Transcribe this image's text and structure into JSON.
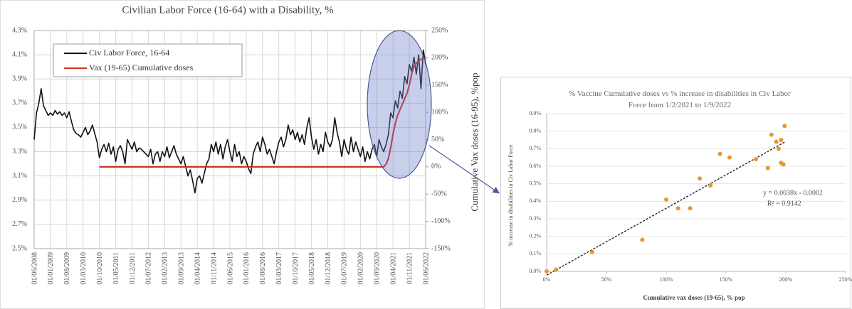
{
  "chart_data": [
    {
      "type": "line",
      "title": "Civilian Labor Force (16-64) with a Disability, %",
      "categories": [
        "01/06/2008",
        null,
        null,
        null,
        null,
        null,
        null,
        "01/01/2009",
        null,
        null,
        null,
        null,
        null,
        null,
        "01/08/2009",
        null,
        null,
        null,
        null,
        null,
        null,
        "01/03/2010",
        null,
        null,
        null,
        null,
        null,
        null,
        "01/10/2010",
        null,
        null,
        null,
        null,
        null,
        null,
        "01/05/2011",
        null,
        null,
        null,
        null,
        null,
        null,
        "01/12/2011",
        null,
        null,
        null,
        null,
        null,
        null,
        "01/07/2012",
        null,
        null,
        null,
        null,
        null,
        null,
        "01/02/2013",
        null,
        null,
        null,
        null,
        null,
        null,
        "01/09/2013",
        null,
        null,
        null,
        null,
        null,
        null,
        "01/04/2014",
        null,
        null,
        null,
        null,
        null,
        null,
        "01/11/2014",
        null,
        null,
        null,
        null,
        null,
        null,
        "01/06/2015",
        null,
        null,
        null,
        null,
        null,
        null,
        "01/01/2016",
        null,
        null,
        null,
        null,
        null,
        null,
        "01/08/2016",
        null,
        null,
        null,
        null,
        null,
        null,
        "01/03/2017",
        null,
        null,
        null,
        null,
        null,
        null,
        "01/10/2017",
        null,
        null,
        null,
        null,
        null,
        null,
        "01/05/2018",
        null,
        null,
        null,
        null,
        null,
        null,
        "01/12/2018",
        null,
        null,
        null,
        null,
        null,
        null,
        "01/07/2019",
        null,
        null,
        null,
        null,
        null,
        null,
        "01/02/2020",
        null,
        null,
        null,
        null,
        null,
        null,
        "01/09/2020",
        null,
        null,
        null,
        null,
        null,
        null,
        "01/04/2021",
        null,
        null,
        null,
        null,
        null,
        null,
        "01/11/2021",
        null,
        null,
        null,
        null,
        null,
        null,
        "01/06/2022"
      ],
      "series": [
        {
          "name": "Civ Labor Force, 16-64",
          "color": "#111111",
          "values": [
            3.4,
            3.62,
            3.7,
            3.82,
            3.68,
            3.64,
            3.6,
            3.62,
            3.6,
            3.64,
            3.61,
            3.63,
            3.6,
            3.62,
            3.58,
            3.63,
            3.55,
            3.48,
            3.45,
            3.44,
            3.42,
            3.46,
            3.5,
            3.44,
            3.47,
            3.52,
            3.45,
            3.38,
            3.25,
            3.32,
            3.36,
            3.3,
            3.37,
            3.28,
            3.34,
            3.22,
            3.32,
            3.35,
            3.3,
            3.2,
            3.4,
            3.36,
            3.32,
            3.38,
            3.3,
            3.33,
            3.32,
            3.3,
            3.28,
            3.26,
            3.32,
            3.2,
            3.28,
            3.3,
            3.22,
            3.3,
            3.26,
            3.34,
            3.25,
            3.3,
            3.35,
            3.28,
            3.24,
            3.2,
            3.26,
            3.18,
            3.1,
            3.15,
            3.06,
            2.96,
            3.08,
            3.1,
            3.04,
            3.12,
            3.2,
            3.24,
            3.36,
            3.3,
            3.38,
            3.28,
            3.36,
            3.24,
            3.34,
            3.4,
            3.3,
            3.22,
            3.36,
            3.26,
            3.3,
            3.2,
            3.26,
            3.22,
            3.16,
            3.12,
            3.28,
            3.34,
            3.38,
            3.3,
            3.42,
            3.36,
            3.28,
            3.32,
            3.26,
            3.2,
            3.3,
            3.38,
            3.42,
            3.34,
            3.4,
            3.52,
            3.44,
            3.48,
            3.4,
            3.46,
            3.38,
            3.44,
            3.36,
            3.5,
            3.58,
            3.42,
            3.32,
            3.4,
            3.28,
            3.36,
            3.3,
            3.46,
            3.38,
            3.34,
            3.4,
            3.58,
            3.46,
            3.38,
            3.26,
            3.4,
            3.32,
            3.28,
            3.42,
            3.3,
            3.38,
            3.32,
            3.26,
            3.34,
            3.22,
            3.3,
            3.24,
            3.32,
            3.36,
            3.26,
            3.4,
            3.34,
            3.3,
            3.36,
            3.44,
            3.62,
            3.58,
            3.72,
            3.66,
            3.8,
            3.74,
            3.92,
            3.86,
            4.02,
            3.96,
            4.08,
            3.94,
            4.1,
            3.82,
            4.14,
            4.02
          ]
        },
        {
          "name": "Vax (19-65) Cumulative doses",
          "color": "#d0301e",
          "axis": "y2",
          "values": [
            null,
            null,
            null,
            null,
            null,
            null,
            null,
            null,
            null,
            null,
            null,
            null,
            null,
            null,
            null,
            null,
            null,
            null,
            null,
            null,
            null,
            null,
            null,
            null,
            null,
            null,
            null,
            null,
            0,
            0,
            0,
            0,
            0,
            0,
            0,
            0,
            0,
            0,
            0,
            0,
            0,
            0,
            0,
            0,
            0,
            0,
            0,
            0,
            0,
            0,
            0,
            0,
            0,
            0,
            0,
            0,
            0,
            0,
            0,
            0,
            0,
            0,
            0,
            0,
            0,
            0,
            0,
            0,
            0,
            0,
            0,
            0,
            0,
            0,
            0,
            0,
            0,
            0,
            0,
            0,
            0,
            0,
            0,
            0,
            0,
            0,
            0,
            0,
            0,
            0,
            0,
            0,
            0,
            0,
            0,
            0,
            0,
            0,
            0,
            0,
            0,
            0,
            0,
            0,
            0,
            0,
            0,
            0,
            0,
            0,
            0,
            0,
            0,
            0,
            0,
            0,
            0,
            0,
            0,
            0,
            0,
            0,
            0,
            0,
            0,
            0,
            0,
            0,
            0,
            0,
            0,
            0,
            0,
            0,
            0,
            0,
            0,
            0,
            0,
            0,
            0,
            0,
            0,
            0,
            0,
            0,
            0,
            0,
            0,
            0,
            0,
            5,
            15,
            35,
            60,
            80,
            95,
            105,
            115,
            125,
            135,
            150,
            170,
            185,
            190,
            195,
            197,
            199,
            200
          ]
        }
      ],
      "ylim": [
        2.5,
        4.3
      ],
      "yticks": [
        {
          "value": 2.5,
          "label": "2.5%"
        },
        {
          "value": 2.7,
          "label": "2.7%"
        },
        {
          "value": 2.9,
          "label": "2.9%"
        },
        {
          "value": 3.1,
          "label": "3.1%"
        },
        {
          "value": 3.3,
          "label": "3.3%"
        },
        {
          "value": 3.5,
          "label": "3.5%"
        },
        {
          "value": 3.7,
          "label": "3.7%"
        },
        {
          "value": 3.9,
          "label": "3.9%"
        },
        {
          "value": 4.1,
          "label": "4.1%"
        },
        {
          "value": 4.3,
          "label": "4.3%"
        }
      ],
      "y2lim": [
        -150,
        250
      ],
      "y2ticks": [
        {
          "value": -150,
          "label": "-150%"
        },
        {
          "value": -100,
          "label": "-100%"
        },
        {
          "value": -50,
          "label": "-50%"
        },
        {
          "value": 0,
          "label": "0%"
        },
        {
          "value": 50,
          "label": "50%"
        },
        {
          "value": 100,
          "label": "100%"
        },
        {
          "value": 150,
          "label": "150%"
        },
        {
          "value": 200,
          "label": "200%"
        },
        {
          "value": 250,
          "label": "250%"
        }
      ],
      "y2label": "Cumulative Vax doses (16-95), %pop",
      "grid": true,
      "legend": "upper-left"
    },
    {
      "type": "scatter",
      "title": "% Vaccine Cumulative doses vs % increase in disabilities in Civ Labor Force from 1/2/2021 to 1/9/2022",
      "x": [
        0,
        8,
        38,
        80,
        100,
        110,
        120,
        128,
        137,
        145,
        153,
        175,
        185,
        188,
        192,
        194,
        196,
        196,
        198,
        199
      ],
      "values": [
        0,
        0.01,
        0.11,
        0.18,
        0.41,
        0.36,
        0.36,
        0.53,
        0.49,
        0.67,
        0.65,
        0.64,
        0.59,
        0.78,
        0.74,
        0.7,
        0.75,
        0.62,
        0.61,
        0.83
      ],
      "color": "#e8962e",
      "xlabel": "Cumulative vax doses (19-65), % pop",
      "ylabel": "% increase in disabilities in Civ Labor Force",
      "xlim": [
        0,
        250
      ],
      "xticks": [
        {
          "value": 0,
          "label": "0%"
        },
        {
          "value": 50,
          "label": "50%"
        },
        {
          "value": 100,
          "label": "100%"
        },
        {
          "value": 150,
          "label": "150%"
        },
        {
          "value": 200,
          "label": "200%"
        },
        {
          "value": 250,
          "label": "250%"
        }
      ],
      "ylim": [
        0,
        0.9
      ],
      "yticks": [
        {
          "value": 0,
          "label": "0.0%"
        },
        {
          "value": 0.1,
          "label": "0.1%"
        },
        {
          "value": 0.2,
          "label": "0.2%"
        },
        {
          "value": 0.3,
          "label": "0.3%"
        },
        {
          "value": 0.4,
          "label": "0.4%"
        },
        {
          "value": 0.5,
          "label": "0.5%"
        },
        {
          "value": 0.6,
          "label": "0.6%"
        },
        {
          "value": 0.7,
          "label": "0.7%"
        },
        {
          "value": 0.8,
          "label": "0.8%"
        },
        {
          "value": 0.9,
          "label": "0.9%"
        }
      ],
      "annotations": [
        "y = 0.0038x - 0.0002",
        "R² = 0.9142"
      ],
      "trendline": true,
      "grid": true
    }
  ]
}
